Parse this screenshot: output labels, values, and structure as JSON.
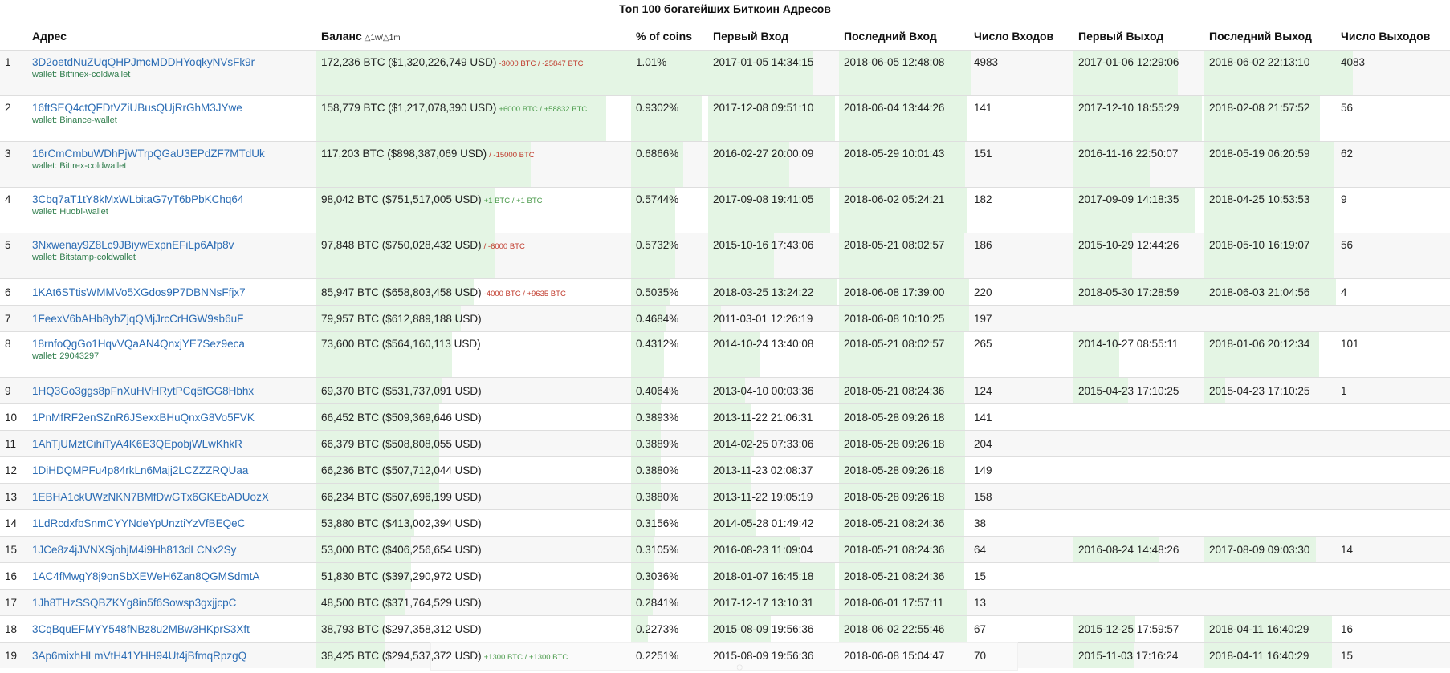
{
  "title": "Топ 100 богатейших Биткоин Адресов",
  "columns": {
    "rank": "",
    "address": "Адрес",
    "balance": "Баланс",
    "balance_delta": "△1w/△1m",
    "pct": "% of coins",
    "first_in": "Первый Вход",
    "last_in": "Последний Вход",
    "ins": "Число Входов",
    "first_out": "Первый Выход",
    "last_out": "Последний Выход",
    "outs": "Число Выходов"
  },
  "colors": {
    "link": "#2b6cb4",
    "wallet": "#2f7d4c",
    "bar": "#e4f5e4",
    "negative": "#c0392b",
    "positive": "#4a9a4a"
  },
  "rows": [
    {
      "rank": "1",
      "address": "3D2oetdNuZUqQHPJmcMDDHYoqkyNVsFk9r",
      "wallet": "wallet: Bitfinex-coldwallet",
      "balance": "172,236 BTC ($1,320,226,749 USD)",
      "delta": "-3000 BTC / -25847 BTC",
      "delta_sign": "neg",
      "pct": "1.01%",
      "first_in": "2017-01-05 14:34:15",
      "last_in": "2018-06-05 12:48:08",
      "ins": "4983",
      "first_out": "2017-01-06 12:29:06",
      "last_out": "2018-06-02 22:13:10",
      "outs": "4083",
      "fill": {
        "balance": 1.0,
        "pct": 1.0,
        "first_in": 0.8,
        "last_in": 1.0,
        "ins": 0.02,
        "first_out": 0.8,
        "last_out": 1.0,
        "outs": 0.15
      }
    },
    {
      "rank": "2",
      "address": "16ftSEQ4ctQFDtVZiUBusQUjRrGhM3JYwe",
      "wallet": "wallet: Binance-wallet",
      "balance": "158,779 BTC ($1,217,078,390 USD)",
      "delta": "+6000 BTC / +58832 BTC",
      "delta_sign": "pos",
      "pct": "0.9302%",
      "first_in": "2017-12-08 09:51:10",
      "last_in": "2018-06-04 13:44:26",
      "ins": "141",
      "first_out": "2017-12-10 18:55:29",
      "last_out": "2018-02-08 21:57:52",
      "outs": "56",
      "fill": {
        "balance": 0.92,
        "pct": 0.92,
        "first_in": 0.97,
        "last_in": 0.99,
        "ins": 0,
        "first_out": 0.98,
        "last_out": 0.88,
        "outs": 0
      }
    },
    {
      "rank": "3",
      "address": "16rCmCmbuWDhPjWTrpQGaU3EPdZF7MTdUk",
      "wallet": "wallet: Bittrex-coldwallet",
      "balance": "117,203 BTC ($898,387,069 USD)",
      "delta": "/ -15000 BTC",
      "delta_sign": "neg",
      "pct": "0.6866%",
      "first_in": "2016-02-27 20:00:09",
      "last_in": "2018-05-29 10:01:43",
      "ins": "151",
      "first_out": "2016-11-16 22:50:07",
      "last_out": "2018-05-19 06:20:59",
      "outs": "62",
      "fill": {
        "balance": 0.68,
        "pct": 0.68,
        "first_in": 0.62,
        "last_in": 0.97,
        "ins": 0,
        "first_out": 0.58,
        "last_out": 0.99,
        "outs": 0
      }
    },
    {
      "rank": "4",
      "address": "3Cbq7aT1tY8kMxWLbitaG7yT6bPbKChq64",
      "wallet": "wallet: Huobi-wallet",
      "balance": "98,042 BTC ($751,517,005 USD)",
      "delta": "+1 BTC / +1 BTC",
      "delta_sign": "pos",
      "pct": "0.5744%",
      "first_in": "2017-09-08 19:41:05",
      "last_in": "2018-06-02 05:24:21",
      "ins": "182",
      "first_out": "2017-09-09 14:18:35",
      "last_out": "2018-04-25 10:53:53",
      "outs": "9",
      "fill": {
        "balance": 0.57,
        "pct": 0.57,
        "first_in": 0.93,
        "last_in": 0.98,
        "ins": 0,
        "first_out": 0.93,
        "last_out": 0.98,
        "outs": 0
      }
    },
    {
      "rank": "5",
      "address": "3Nxwenay9Z8Lc9JBiywExpnEFiLp6Afp8v",
      "wallet": "wallet: Bitstamp-coldwallet",
      "balance": "97,848 BTC ($750,028,432 USD)",
      "delta": "/ -6000 BTC",
      "delta_sign": "neg",
      "pct": "0.5732%",
      "first_in": "2015-10-16 17:43:06",
      "last_in": "2018-05-21 08:02:57",
      "ins": "186",
      "first_out": "2015-10-29 12:44:26",
      "last_out": "2018-05-10 16:19:07",
      "outs": "56",
      "fill": {
        "balance": 0.57,
        "pct": 0.57,
        "first_in": 0.5,
        "last_in": 0.96,
        "ins": 0,
        "first_out": 0.45,
        "last_out": 0.98,
        "outs": 0
      }
    },
    {
      "rank": "6",
      "address": "1KAt6STtisWMMVo5XGdos9P7DBNNsFfjx7",
      "wallet": "",
      "balance": "85,947 BTC ($658,803,458 USD)",
      "delta": "-4000 BTC / +9635 BTC",
      "delta_sign": "neg",
      "pct": "0.5035%",
      "first_in": "2018-03-25 13:24:22",
      "last_in": "2018-06-08 17:39:00",
      "ins": "220",
      "first_out": "2018-05-30 17:28:59",
      "last_out": "2018-06-03 21:04:56",
      "outs": "4",
      "fill": {
        "balance": 0.5,
        "pct": 0.5,
        "first_in": 0.99,
        "last_in": 1.0,
        "ins": 0,
        "first_out": 1.0,
        "last_out": 1.0,
        "outs": 0
      }
    },
    {
      "rank": "7",
      "address": "1FeexV6bAHb8ybZjqQMjJrcCrHGW9sb6uF",
      "wallet": "",
      "balance": "79,957 BTC ($612,889,188 USD)",
      "delta": "",
      "delta_sign": "",
      "pct": "0.4684%",
      "first_in": "2011-03-01 12:26:19",
      "last_in": "2018-06-08 10:10:25",
      "ins": "197",
      "first_out": "",
      "last_out": "",
      "outs": "",
      "fill": {
        "balance": 0.46,
        "pct": 0.46,
        "first_in": 0.1,
        "last_in": 1.0,
        "ins": 0,
        "first_out": 0,
        "last_out": 0,
        "outs": 0
      }
    },
    {
      "rank": "8",
      "address": "18rnfoQgGo1HqvVQaAN4QnxjYE7Sez9eca",
      "wallet": "wallet: 29043297",
      "balance": "73,600 BTC ($564,160,113 USD)",
      "delta": "",
      "delta_sign": "",
      "pct": "0.4312%",
      "first_in": "2014-10-24 13:40:08",
      "last_in": "2018-05-21 08:02:57",
      "ins": "265",
      "first_out": "2014-10-27 08:55:11",
      "last_out": "2018-01-06 20:12:34",
      "outs": "101",
      "fill": {
        "balance": 0.43,
        "pct": 0.43,
        "first_in": 0.4,
        "last_in": 0.96,
        "ins": 0,
        "first_out": 0.35,
        "last_out": 0.87,
        "outs": 0
      }
    },
    {
      "rank": "9",
      "address": "1HQ3Go3ggs8pFnXuHVHRytPCq5fGG8Hbhx",
      "wallet": "",
      "balance": "69,370 BTC ($531,737,091 USD)",
      "delta": "",
      "delta_sign": "",
      "pct": "0.4064%",
      "first_in": "2013-04-10 00:03:36",
      "last_in": "2018-05-21 08:24:36",
      "ins": "124",
      "first_out": "2015-04-23 17:10:25",
      "last_out": "2015-04-23 17:10:25",
      "outs": "1",
      "fill": {
        "balance": 0.4,
        "pct": 0.4,
        "first_in": 0.28,
        "last_in": 0.96,
        "ins": 0,
        "first_out": 0.42,
        "last_out": 0.16,
        "outs": 0
      }
    },
    {
      "rank": "10",
      "address": "1PnMfRF2enSZnR6JSexxBHuQnxG8Vo5FVK",
      "wallet": "",
      "balance": "66,452 BTC ($509,369,646 USD)",
      "delta": "",
      "delta_sign": "",
      "pct": "0.3893%",
      "first_in": "2013-11-22 21:06:31",
      "last_in": "2018-05-28 09:26:18",
      "ins": "141",
      "first_out": "",
      "last_out": "",
      "outs": "",
      "fill": {
        "balance": 0.39,
        "pct": 0.39,
        "first_in": 0.33,
        "last_in": 0.97,
        "ins": 0,
        "first_out": 0,
        "last_out": 0,
        "outs": 0
      }
    },
    {
      "rank": "11",
      "address": "1AhTjUMztCihiTyA4K6E3QEpobjWLwKhkR",
      "wallet": "",
      "balance": "66,379 BTC ($508,808,055 USD)",
      "delta": "",
      "delta_sign": "",
      "pct": "0.3889%",
      "first_in": "2014-02-25 07:33:06",
      "last_in": "2018-05-28 09:26:18",
      "ins": "204",
      "first_out": "",
      "last_out": "",
      "outs": "",
      "fill": {
        "balance": 0.39,
        "pct": 0.39,
        "first_in": 0.35,
        "last_in": 0.97,
        "ins": 0,
        "first_out": 0,
        "last_out": 0,
        "outs": 0
      }
    },
    {
      "rank": "12",
      "address": "1DiHDQMPFu4p84rkLn6Majj2LCZZZRQUaa",
      "wallet": "",
      "balance": "66,236 BTC ($507,712,044 USD)",
      "delta": "",
      "delta_sign": "",
      "pct": "0.3880%",
      "first_in": "2013-11-23 02:08:37",
      "last_in": "2018-05-28 09:26:18",
      "ins": "149",
      "first_out": "",
      "last_out": "",
      "outs": "",
      "fill": {
        "balance": 0.39,
        "pct": 0.39,
        "first_in": 0.33,
        "last_in": 0.97,
        "ins": 0,
        "first_out": 0,
        "last_out": 0,
        "outs": 0
      }
    },
    {
      "rank": "13",
      "address": "1EBHA1ckUWzNKN7BMfDwGTx6GKEbADUozX",
      "wallet": "",
      "balance": "66,234 BTC ($507,696,199 USD)",
      "delta": "",
      "delta_sign": "",
      "pct": "0.3880%",
      "first_in": "2013-11-22 19:05:19",
      "last_in": "2018-05-28 09:26:18",
      "ins": "158",
      "first_out": "",
      "last_out": "",
      "outs": "",
      "fill": {
        "balance": 0.39,
        "pct": 0.39,
        "first_in": 0.33,
        "last_in": 0.97,
        "ins": 0,
        "first_out": 0,
        "last_out": 0,
        "outs": 0
      }
    },
    {
      "rank": "14",
      "address": "1LdRcdxfbSnmCYYNdeYpUnztiYzVfBEQeC",
      "wallet": "",
      "balance": "53,880 BTC ($413,002,394 USD)",
      "delta": "",
      "delta_sign": "",
      "pct": "0.3156%",
      "first_in": "2014-05-28 01:49:42",
      "last_in": "2018-05-21 08:24:36",
      "ins": "38",
      "first_out": "",
      "last_out": "",
      "outs": "",
      "fill": {
        "balance": 0.31,
        "pct": 0.31,
        "first_in": 0.37,
        "last_in": 0.96,
        "ins": 0,
        "first_out": 0,
        "last_out": 0,
        "outs": 0
      }
    },
    {
      "rank": "15",
      "address": "1JCe8z4jJVNXSjohjM4i9Hh813dLCNx2Sy",
      "wallet": "",
      "balance": "53,000 BTC ($406,256,654 USD)",
      "delta": "",
      "delta_sign": "",
      "pct": "0.3105%",
      "first_in": "2016-08-23 11:09:04",
      "last_in": "2018-05-21 08:24:36",
      "ins": "64",
      "first_out": "2016-08-24 14:48:26",
      "last_out": "2017-08-09 09:03:30",
      "outs": "14",
      "fill": {
        "balance": 0.3,
        "pct": 0.3,
        "first_in": 0.7,
        "last_in": 0.96,
        "ins": 0,
        "first_out": 0.65,
        "last_out": 0.85,
        "outs": 0
      }
    },
    {
      "rank": "16",
      "address": "1AC4fMwgY8j9onSbXEWeH6Zan8QGMSdmtA",
      "wallet": "",
      "balance": "51,830 BTC ($397,290,972 USD)",
      "delta": "",
      "delta_sign": "",
      "pct": "0.3036%",
      "first_in": "2018-01-07 16:45:18",
      "last_in": "2018-05-21 08:24:36",
      "ins": "15",
      "first_out": "",
      "last_out": "",
      "outs": "",
      "fill": {
        "balance": 0.3,
        "pct": 0.3,
        "first_in": 0.97,
        "last_in": 0.96,
        "ins": 0,
        "first_out": 0,
        "last_out": 0,
        "outs": 0
      }
    },
    {
      "rank": "17",
      "address": "1Jh8THzSSQBZKYg8in5f6Sowsp3gxjjcpC",
      "wallet": "",
      "balance": "48,500 BTC ($371,764,529 USD)",
      "delta": "",
      "delta_sign": "",
      "pct": "0.2841%",
      "first_in": "2017-12-17 13:10:31",
      "last_in": "2018-06-01 17:57:11",
      "ins": "13",
      "first_out": "",
      "last_out": "",
      "outs": "",
      "fill": {
        "balance": 0.28,
        "pct": 0.28,
        "first_in": 0.97,
        "last_in": 0.98,
        "ins": 0,
        "first_out": 0,
        "last_out": 0,
        "outs": 0
      }
    },
    {
      "rank": "18",
      "address": "3CqBquEFMYY548fNBz8u2MBw3HKprS3Xft",
      "wallet": "",
      "balance": "38,793 BTC ($297,358,312 USD)",
      "delta": "",
      "delta_sign": "",
      "pct": "0.2273%",
      "first_in": "2015-08-09 19:56:36",
      "last_in": "2018-06-02 22:55:46",
      "ins": "67",
      "first_out": "2015-12-25 17:59:57",
      "last_out": "2018-04-11 16:40:29",
      "outs": "16",
      "fill": {
        "balance": 0.22,
        "pct": 0.22,
        "first_in": 0.48,
        "last_in": 0.99,
        "ins": 0,
        "first_out": 0.47,
        "last_out": 0.97,
        "outs": 0
      }
    },
    {
      "rank": "19",
      "address": "3Ap6mixhHLmVtH41YHH94Ut4jBfmqRpzgQ",
      "wallet": "",
      "balance": "38,425 BTC ($294,537,372 USD)",
      "delta": "+1300 BTC / +1300 BTC",
      "delta_sign": "pos",
      "pct": "0.2251%",
      "first_in": "2015-08-09 19:56:36",
      "last_in": "2018-06-08 15:04:47",
      "ins": "70",
      "first_out": "2015-11-03 17:16:24",
      "last_out": "2018-04-11 16:40:29",
      "outs": "15",
      "fill": {
        "balance": 0.22,
        "pct": 0.22,
        "first_in": 0.48,
        "last_in": 1.0,
        "ins": 0,
        "first_out": 0.46,
        "last_out": 0.97,
        "outs": 0
      }
    }
  ]
}
